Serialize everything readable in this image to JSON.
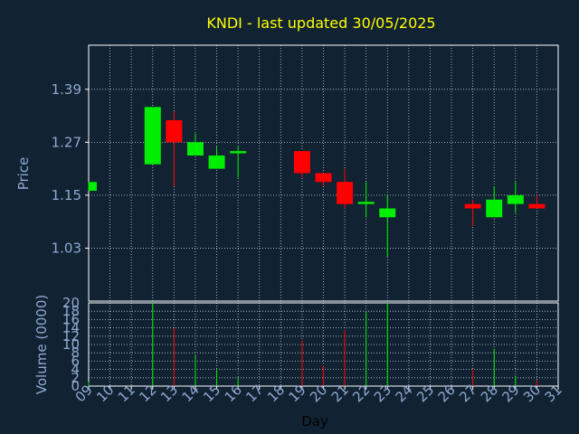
{
  "colors": {
    "background": "#112233",
    "title": "#ffff00",
    "axis_text": "#8fa9cf",
    "frame": "#ffffff",
    "grid": "#c8d0e0",
    "up": "#00ee00",
    "down": "#ff0000"
  },
  "chart_data": {
    "type": "candlestick",
    "title": "KNDI - last updated 30/05/2025",
    "xlabel": "Day",
    "price_panel": {
      "ylabel": "Price",
      "ylim": [
        0.91,
        1.49
      ],
      "yticks": [
        1.03,
        1.15,
        1.27,
        1.39
      ],
      "ytick_labels": [
        "1.03",
        "1.15",
        "1.27",
        "1.39"
      ]
    },
    "volume_panel": {
      "ylabel": "Volume (0000)",
      "ylim": [
        0,
        20
      ],
      "yticks": [
        0,
        2,
        4,
        6,
        8,
        10,
        12,
        14,
        16,
        18,
        20
      ],
      "ytick_labels": [
        "0",
        "2",
        "4",
        "6",
        "8",
        "10",
        "12",
        "14",
        "16",
        "18",
        "20"
      ]
    },
    "x_range": [
      9,
      31
    ],
    "x_ticks": [
      9,
      10,
      11,
      12,
      13,
      14,
      15,
      16,
      17,
      18,
      19,
      20,
      21,
      22,
      23,
      24,
      25,
      26,
      27,
      28,
      29,
      30,
      31
    ],
    "x_tick_labels": [
      "09",
      "10",
      "11",
      "12",
      "13",
      "14",
      "15",
      "16",
      "17",
      "18",
      "19",
      "20",
      "21",
      "22",
      "23",
      "24",
      "25",
      "26",
      "27",
      "28",
      "29",
      "30",
      "31"
    ],
    "candles": [
      {
        "day": 9,
        "open": 1.16,
        "close": 1.18,
        "high": 1.18,
        "low": 1.16,
        "volume": 1
      },
      {
        "day": 12,
        "open": 1.22,
        "close": 1.35,
        "high": 1.35,
        "low": 1.22,
        "volume": 20
      },
      {
        "day": 13,
        "open": 1.32,
        "close": 1.27,
        "high": 1.34,
        "low": 1.17,
        "volume": 14
      },
      {
        "day": 14,
        "open": 1.24,
        "close": 1.27,
        "high": 1.29,
        "low": 1.24,
        "volume": 7.5
      },
      {
        "day": 15,
        "open": 1.21,
        "close": 1.24,
        "high": 1.26,
        "low": 1.21,
        "volume": 4
      },
      {
        "day": 16,
        "open": 1.245,
        "close": 1.25,
        "high": 1.26,
        "low": 1.19,
        "volume": 2
      },
      {
        "day": 19,
        "open": 1.25,
        "close": 1.2,
        "high": 1.25,
        "low": 1.19,
        "volume": 11
      },
      {
        "day": 20,
        "open": 1.2,
        "close": 1.18,
        "high": 1.2,
        "low": 1.17,
        "volume": 5
      },
      {
        "day": 21,
        "open": 1.18,
        "close": 1.13,
        "high": 1.21,
        "low": 1.12,
        "volume": 13.5
      },
      {
        "day": 22,
        "open": 1.13,
        "close": 1.135,
        "high": 1.18,
        "low": 1.1,
        "volume": 18
      },
      {
        "day": 23,
        "open": 1.1,
        "close": 1.12,
        "high": 1.15,
        "low": 1.01,
        "volume": 20
      },
      {
        "day": 27,
        "open": 1.13,
        "close": 1.12,
        "high": 1.14,
        "low": 1.08,
        "volume": 4
      },
      {
        "day": 28,
        "open": 1.1,
        "close": 1.14,
        "high": 1.17,
        "low": 1.1,
        "volume": 9
      },
      {
        "day": 29,
        "open": 1.13,
        "close": 1.15,
        "high": 1.18,
        "low": 1.11,
        "volume": 2.5
      },
      {
        "day": 30,
        "open": 1.13,
        "close": 1.12,
        "high": 1.15,
        "low": 1.12,
        "volume": 1.5
      }
    ]
  }
}
